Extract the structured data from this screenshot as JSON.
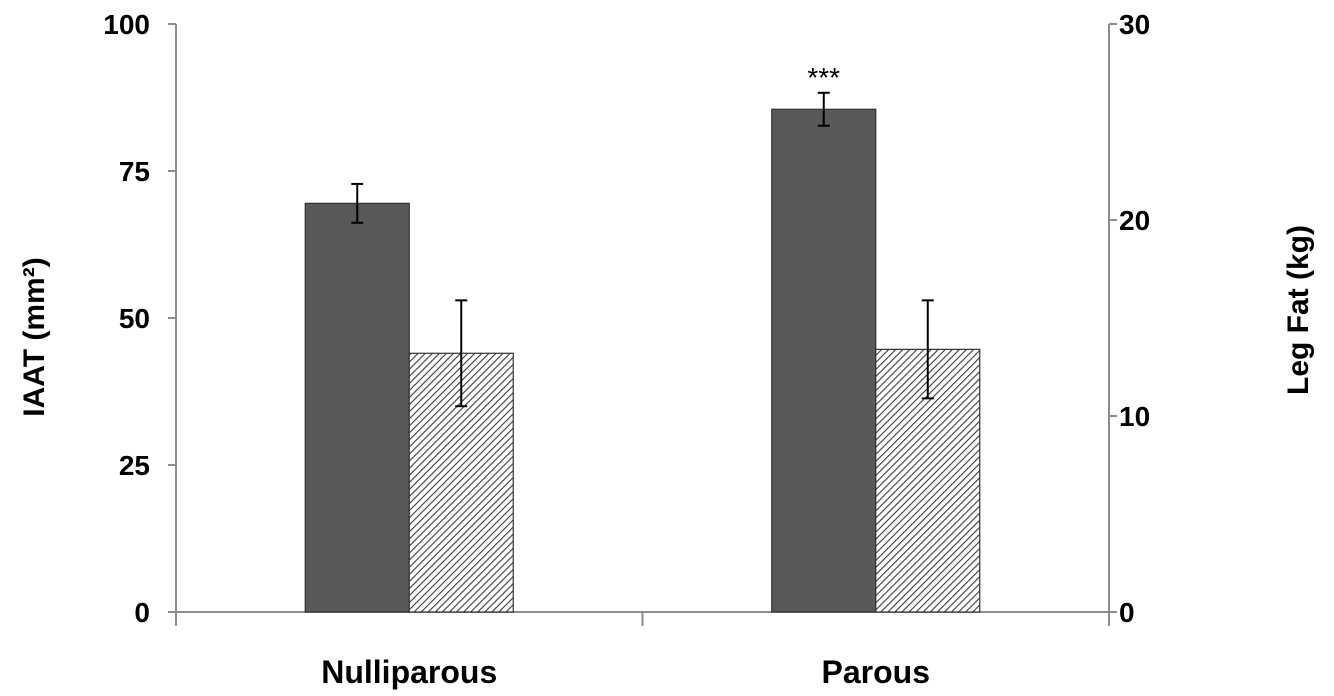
{
  "chart_data": {
    "type": "bar",
    "categories": [
      "Nulliparous",
      "Parous"
    ],
    "series": [
      {
        "axis": "left",
        "color": "#595959",
        "pattern": "solid",
        "values": [
          69.5,
          85.5
        ],
        "errors": [
          3.3,
          2.8
        ]
      },
      {
        "axis": "right",
        "color": "#ffffff",
        "pattern": "diagonal-hatch",
        "values": [
          13.2,
          13.4
        ],
        "errors": [
          2.7,
          2.5
        ]
      }
    ],
    "ylabel_left": "IAAT (mm²)",
    "ylabel_right": "Leg Fat (kg)",
    "ylim_left": [
      0,
      100
    ],
    "ylim_right": [
      0,
      30
    ],
    "yticks_left": [
      "0",
      "25",
      "50",
      "75",
      "100"
    ],
    "yticks_right": [
      "0",
      "10",
      "20",
      "30"
    ],
    "annotations": [
      {
        "category": "Parous",
        "series": 0,
        "text": "***"
      }
    ],
    "grid": false,
    "legend": "none"
  }
}
